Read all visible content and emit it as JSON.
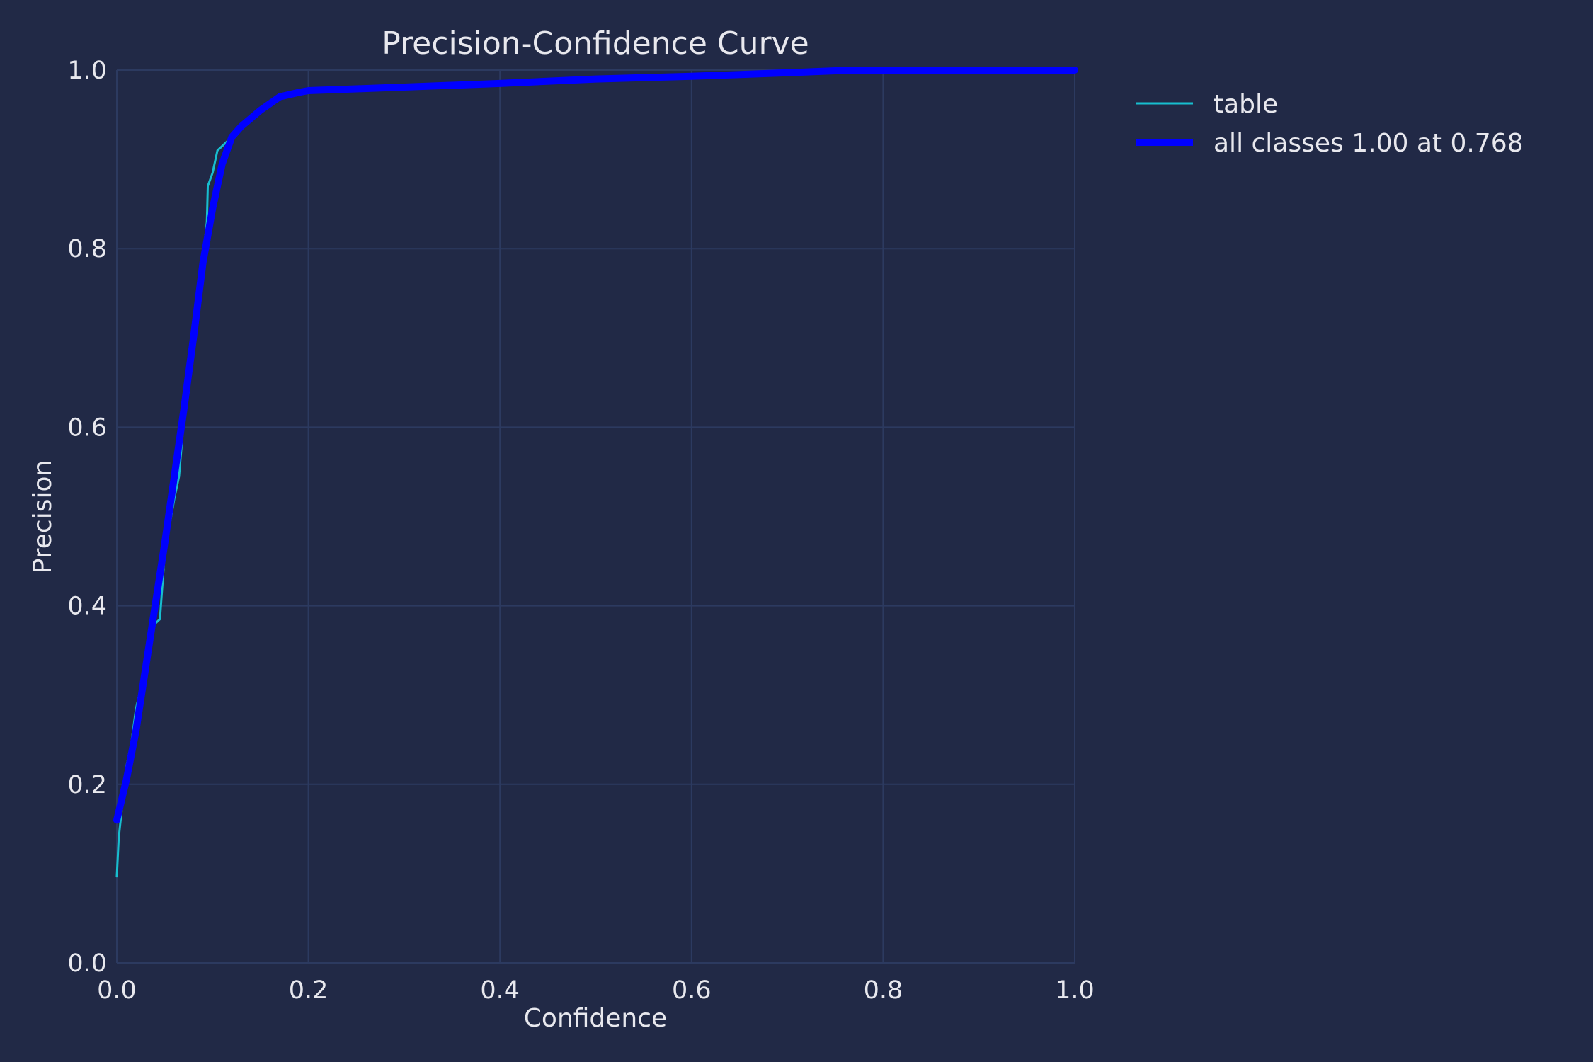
{
  "chart_data": {
    "type": "line",
    "title": "Precision-Confidence Curve",
    "xlabel": "Confidence",
    "ylabel": "Precision",
    "xlim": [
      0.0,
      1.0
    ],
    "ylim": [
      0.0,
      1.0
    ],
    "xticks": [
      "0.0",
      "0.2",
      "0.4",
      "0.6",
      "0.8",
      "1.0"
    ],
    "yticks": [
      "0.0",
      "0.2",
      "0.4",
      "0.6",
      "0.8",
      "1.0"
    ],
    "grid": true,
    "legend_position": "outside-top-right",
    "series": [
      {
        "name": "table",
        "color": "#17becf",
        "x": [
          0.0,
          0.002,
          0.006,
          0.01,
          0.015,
          0.02,
          0.03,
          0.035,
          0.045,
          0.05,
          0.06,
          0.065,
          0.07,
          0.075,
          0.08,
          0.085,
          0.09,
          0.094,
          0.095,
          0.1,
          0.105,
          0.12,
          0.15,
          0.18,
          0.2,
          0.3,
          0.4,
          0.5,
          0.6,
          0.7,
          0.75,
          0.8,
          0.9,
          1.0
        ],
        "y": [
          0.097,
          0.14,
          0.18,
          0.22,
          0.245,
          0.285,
          0.33,
          0.375,
          0.385,
          0.46,
          0.52,
          0.545,
          0.61,
          0.64,
          0.71,
          0.76,
          0.79,
          0.83,
          0.87,
          0.885,
          0.91,
          0.925,
          0.955,
          0.975,
          0.978,
          0.982,
          0.985,
          0.99,
          0.993,
          0.997,
          1.0,
          1.0,
          1.0,
          1.0
        ]
      },
      {
        "name": "all classes 1.00 at 0.768",
        "color": "#0000ff",
        "x": [
          0.0,
          0.01,
          0.02,
          0.03,
          0.04,
          0.05,
          0.06,
          0.07,
          0.08,
          0.09,
          0.1,
          0.11,
          0.12,
          0.13,
          0.15,
          0.17,
          0.19,
          0.2,
          0.25,
          0.3,
          0.4,
          0.5,
          0.6,
          0.7,
          0.768,
          0.8,
          0.9,
          1.0
        ],
        "y": [
          0.16,
          0.205,
          0.26,
          0.33,
          0.4,
          0.47,
          0.545,
          0.62,
          0.7,
          0.785,
          0.845,
          0.895,
          0.925,
          0.937,
          0.955,
          0.97,
          0.975,
          0.977,
          0.979,
          0.981,
          0.985,
          0.99,
          0.993,
          0.997,
          1.0,
          1.0,
          1.0,
          1.0
        ]
      }
    ]
  }
}
